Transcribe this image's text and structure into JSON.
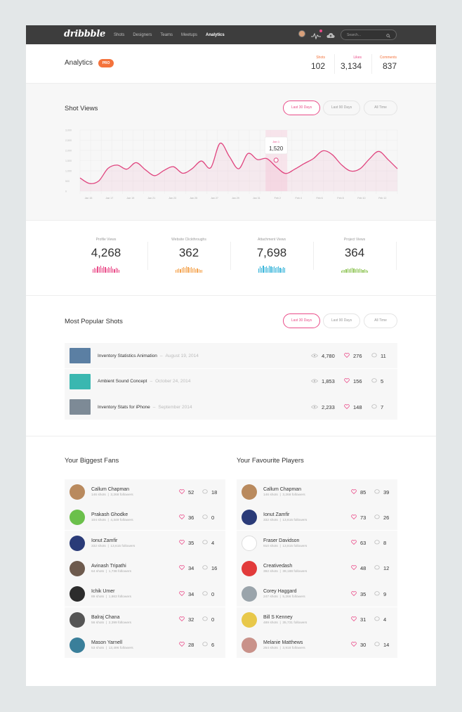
{
  "nav": {
    "logo": "dribbble",
    "items": [
      "Shots",
      "Designers",
      "Teams",
      "Meetups",
      "Analytics"
    ],
    "active": "Analytics",
    "search_placeholder": "Search..."
  },
  "header": {
    "title": "Analytics",
    "badge": "PRO",
    "stats": [
      {
        "label": "Shots",
        "value": "102"
      },
      {
        "label": "Likes",
        "value": "3,134"
      },
      {
        "label": "Comments",
        "value": "837"
      }
    ]
  },
  "shot_views": {
    "title": "Shot Views",
    "filters": [
      "Last 30 Days",
      "Last 90 Days",
      "All Time"
    ],
    "active_filter": "Last 30 Days",
    "tooltip": {
      "label": "Jan 1",
      "value": "1,520"
    }
  },
  "chart_data": {
    "type": "area",
    "title": "Shot Views",
    "y_ticks": [
      "3,000",
      "2,500",
      "2,000",
      "1,500",
      "1,000",
      "500",
      "0"
    ],
    "ylim": [
      0,
      3000
    ],
    "x_ticks": [
      "Jan 15",
      "Jan 17",
      "Jan 19",
      "Jan 21",
      "Jan 23",
      "Jan 25",
      "Jan 27",
      "Jan 29",
      "Jan 31",
      "Feb 2",
      "Feb 4",
      "Feb 6",
      "Feb 8",
      "Feb 10",
      "Feb 12"
    ],
    "series": [
      {
        "values": [
          650,
          380,
          500,
          1120,
          1280,
          1080,
          1400,
          1050,
          760,
          1020,
          1200,
          880,
          1100,
          1480,
          1150,
          2350,
          1700,
          1100,
          1850,
          1550,
          1600,
          1200,
          870,
          1080,
          1350,
          1600,
          1980,
          1800,
          1300,
          990,
          1100,
          1580,
          1950,
          1550,
          1100
        ]
      }
    ],
    "highlight": {
      "label": "Jan 1",
      "value": 1520
    },
    "grid": true
  },
  "summary": [
    {
      "label": "Profile Views",
      "value": "4,268",
      "color": "#ea4c89",
      "bars": [
        5,
        7,
        6,
        9,
        8,
        10,
        7,
        9,
        8,
        6,
        8,
        7,
        9,
        6,
        5,
        7,
        6,
        4
      ]
    },
    {
      "label": "Website Clickthroughs",
      "value": "362",
      "color": "#f4a24c",
      "bars": [
        4,
        5,
        6,
        5,
        7,
        8,
        7,
        9,
        8,
        7,
        8,
        6,
        7,
        5,
        6,
        5,
        4,
        4
      ]
    },
    {
      "label": "Attachment Views",
      "value": "7,698",
      "color": "#34b3d9",
      "bars": [
        6,
        9,
        7,
        10,
        8,
        9,
        7,
        10,
        9,
        8,
        9,
        7,
        8,
        9,
        7,
        6,
        8,
        7
      ]
    },
    {
      "label": "Project Views",
      "value": "364",
      "color": "#8ac24f",
      "bars": [
        3,
        4,
        4,
        5,
        6,
        5,
        6,
        7,
        6,
        5,
        6,
        5,
        6,
        5,
        4,
        5,
        4,
        3
      ]
    }
  ],
  "popular": {
    "title": "Most Popular Shots",
    "filters": [
      "Last 30 Days",
      "Last 90 Days",
      "All Time"
    ],
    "rows": [
      {
        "title": "Inventory Statistics Animation",
        "date": "August 19, 2014",
        "views": "4,780",
        "likes": "276",
        "comments": "11",
        "thumb": "#5b7fa3"
      },
      {
        "title": "Ambient Sound Concept",
        "date": "October 24, 2014",
        "views": "1,853",
        "likes": "156",
        "comments": "5",
        "thumb": "#3ab7b0"
      },
      {
        "title": "Inventory Stats for iPhone",
        "date": "September 2014",
        "views": "2,233",
        "likes": "148",
        "comments": "7",
        "thumb": "#7d8a96"
      }
    ]
  },
  "fans": {
    "title": "Your Biggest Fans",
    "rows": [
      {
        "name": "Callum Chapman",
        "shots": "146 shots",
        "followers": "3,268 followers",
        "likes": "52",
        "comments": "18",
        "avatar": "#b98a5e"
      },
      {
        "name": "Prakash Ghodke",
        "shots": "104 shots",
        "followers": "4,349 followers",
        "likes": "36",
        "comments": "0",
        "avatar": "#6bc04b"
      },
      {
        "name": "Ionut Zamfir",
        "shots": "332 shots",
        "followers": "13,615 followers",
        "likes": "35",
        "comments": "4",
        "avatar": "#2a3b78"
      },
      {
        "name": "Avinash Tripathi",
        "shots": "64 shots",
        "followers": "1,738 followers",
        "likes": "34",
        "comments": "16",
        "avatar": "#6d5a4d"
      },
      {
        "name": "Ichik Umer",
        "shots": "89 shots",
        "followers": "1,863 followers",
        "likes": "34",
        "comments": "0",
        "avatar": "#2c2c2c"
      },
      {
        "name": "Balraj Chana",
        "shots": "56 shots",
        "followers": "2,399 followers",
        "likes": "32",
        "comments": "0",
        "avatar": "#555555"
      },
      {
        "name": "Mason Yarnell",
        "shots": "53 shots",
        "followers": "13,496 followers",
        "likes": "28",
        "comments": "6",
        "avatar": "#3a7f9a"
      }
    ]
  },
  "players": {
    "title": "Your Favourite Players",
    "rows": [
      {
        "name": "Callum Chapman",
        "shots": "146 shots",
        "followers": "3,268 followers",
        "likes": "85",
        "comments": "39",
        "avatar": "#b98a5e"
      },
      {
        "name": "Ionut Zamfir",
        "shots": "332 shots",
        "followers": "13,615 followers",
        "likes": "73",
        "comments": "26",
        "avatar": "#2a3b78"
      },
      {
        "name": "Fraser Davidson",
        "shots": "910 shots",
        "followers": "13,815 followers",
        "likes": "63",
        "comments": "8",
        "avatar": "#ffffff"
      },
      {
        "name": "Creativedash",
        "shots": "392 shots",
        "followers": "39,188 followers",
        "likes": "48",
        "comments": "12",
        "avatar": "#e23b3b"
      },
      {
        "name": "Corey Haggard",
        "shots": "247 shots",
        "followers": "5,266 followers",
        "likes": "35",
        "comments": "9",
        "avatar": "#9aa4ab"
      },
      {
        "name": "Bill S Kenney",
        "shots": "489 shots",
        "followers": "35,731 followers",
        "likes": "31",
        "comments": "4",
        "avatar": "#e8c84a"
      },
      {
        "name": "Melanie Matthews",
        "shots": "254 shots",
        "followers": "3,918 followers",
        "likes": "30",
        "comments": "14",
        "avatar": "#c9928a"
      }
    ]
  },
  "colors": {
    "accent": "#ea4c89",
    "orange": "#f4733c",
    "nav_bg": "#3d3d3d"
  }
}
